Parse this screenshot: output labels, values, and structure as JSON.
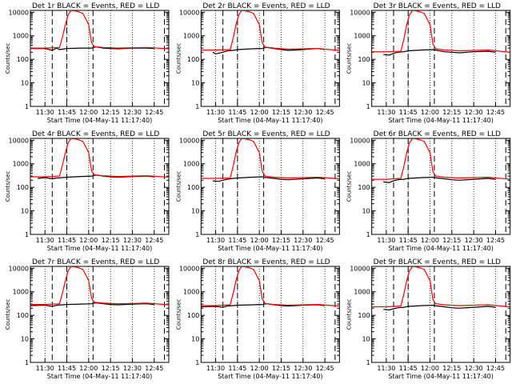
{
  "layout": {
    "rows": 3,
    "cols": 3
  },
  "colors": {
    "events": "#000000",
    "lld": "#ff0000",
    "axes": "#000000",
    "background": "#ffffff"
  },
  "chart_data": [
    {
      "type": "line",
      "title": "Det 1r BLACK = Events, RED = LLD",
      "xlabel": "Start Time (04-May-11 11:17:40)",
      "ylabel": "Counts/sec",
      "yscale": "log",
      "ylim": [
        1,
        12000
      ],
      "xlim": [
        "11:20",
        "12:55"
      ],
      "xticks": [
        "11:30",
        "11:45",
        "12:00",
        "12:15",
        "12:30",
        "12:45"
      ],
      "yticks": [
        "1",
        "10",
        "100",
        "1000",
        "10000"
      ],
      "markers": [
        "11:35",
        "11:45",
        "12:03",
        "12:52"
      ],
      "series": [
        {
          "name": "Events",
          "color": "#000000",
          "x": [
            "11:20",
            "11:30",
            "11:35",
            "11:38",
            "11:40",
            "11:45",
            "11:55",
            "12:02",
            "12:05",
            "12:10",
            "12:15",
            "12:20",
            "12:30",
            "12:40",
            "12:45"
          ],
          "values": [
            290,
            290,
            240,
            300,
            260,
            290,
            300,
            300,
            340,
            300,
            290,
            280,
            300,
            300,
            290
          ]
        },
        {
          "name": "LLD",
          "color": "#ff0000",
          "x": [
            "11:20",
            "11:30",
            "11:40",
            "11:42",
            "11:44",
            "11:46",
            "11:48",
            "11:52",
            "11:56",
            "12:00",
            "12:02",
            "12:04",
            "12:10",
            "12:20",
            "12:30",
            "12:40",
            "12:55"
          ],
          "values": [
            300,
            300,
            320,
            900,
            3000,
            8000,
            12000,
            11000,
            9000,
            3000,
            500,
            350,
            320,
            300,
            310,
            320,
            280
          ]
        }
      ]
    },
    {
      "type": "line",
      "title": "Det 2r BLACK = Events, RED = LLD",
      "xlabel": "Start Time (04-May-11 11:17:40)",
      "ylabel": "Counts/sec",
      "yscale": "log",
      "ylim": [
        1,
        12000
      ],
      "xlim": [
        "11:20",
        "12:55"
      ],
      "xticks": [
        "11:30",
        "11:45",
        "12:00",
        "12:15",
        "12:30",
        "12:45"
      ],
      "yticks": [
        "1",
        "10",
        "100",
        "1000",
        "10000"
      ],
      "markers": [
        "11:35",
        "11:45",
        "12:03",
        "12:52"
      ],
      "series": [
        {
          "name": "Events",
          "color": "#000000",
          "x": [
            "11:28",
            "11:30",
            "11:35",
            "11:38",
            "11:42",
            "11:45",
            "11:55",
            "12:02",
            "12:05",
            "12:10",
            "12:15",
            "12:20",
            "12:30",
            "12:40",
            "12:45"
          ],
          "values": [
            200,
            170,
            200,
            230,
            240,
            260,
            280,
            290,
            320,
            290,
            260,
            240,
            260,
            290,
            260
          ]
        },
        {
          "name": "LLD",
          "color": "#ff0000",
          "x": [
            "11:20",
            "11:30",
            "11:40",
            "11:42",
            "11:44",
            "11:46",
            "11:48",
            "11:52",
            "11:56",
            "12:00",
            "12:02",
            "12:04",
            "12:10",
            "12:20",
            "12:30",
            "12:40",
            "12:55"
          ],
          "values": [
            250,
            250,
            260,
            800,
            3000,
            8000,
            12000,
            11000,
            9000,
            3000,
            500,
            330,
            300,
            270,
            280,
            290,
            240
          ]
        }
      ]
    },
    {
      "type": "line",
      "title": "Det 3r BLACK = Events, RED = LLD",
      "xlabel": "Start Time (04-May-11 11:17:40)",
      "ylabel": "Counts/sec",
      "yscale": "log",
      "ylim": [
        1,
        12000
      ],
      "xlim": [
        "11:20",
        "12:55"
      ],
      "xticks": [
        "11:30",
        "11:45",
        "12:00",
        "12:15",
        "12:30",
        "12:45"
      ],
      "yticks": [
        "1",
        "10",
        "100",
        "1000",
        "10000"
      ],
      "markers": [
        "11:35",
        "11:45",
        "12:03",
        "12:52"
      ],
      "series": [
        {
          "name": "Events",
          "color": "#000000",
          "x": [
            "11:28",
            "11:32",
            "11:35",
            "11:38",
            "11:42",
            "11:45",
            "11:55",
            "12:02",
            "12:05",
            "12:10",
            "12:15",
            "12:20",
            "12:30",
            "12:40",
            "12:45"
          ],
          "values": [
            160,
            150,
            180,
            200,
            210,
            230,
            250,
            260,
            240,
            210,
            200,
            190,
            210,
            220,
            200
          ]
        },
        {
          "name": "LLD",
          "color": "#ff0000",
          "x": [
            "11:20",
            "11:30",
            "11:40",
            "11:42",
            "11:44",
            "11:46",
            "11:48",
            "11:52",
            "11:56",
            "12:00",
            "12:02",
            "12:04",
            "12:10",
            "12:20",
            "12:30",
            "12:40",
            "12:55"
          ],
          "values": [
            210,
            210,
            220,
            700,
            3000,
            8000,
            12000,
            11000,
            9000,
            3000,
            450,
            280,
            250,
            230,
            240,
            250,
            200
          ]
        }
      ]
    },
    {
      "type": "line",
      "title": "Det 4r BLACK = Events, RED = LLD",
      "xlabel": "Start Time (04-May-11 11:17:40)",
      "ylabel": "Counts/sec",
      "yscale": "log",
      "ylim": [
        1,
        12000
      ],
      "xlim": [
        "11:20",
        "12:55"
      ],
      "xticks": [
        "11:30",
        "11:45",
        "12:00",
        "12:15",
        "12:30",
        "12:45"
      ],
      "yticks": [
        "1",
        "10",
        "100",
        "1000",
        "10000"
      ],
      "markers": [
        "11:35",
        "11:45",
        "12:03",
        "12:52"
      ],
      "series": [
        {
          "name": "Events",
          "color": "#000000",
          "x": [
            "11:25",
            "11:30",
            "11:35",
            "11:38",
            "11:42",
            "11:45",
            "11:55",
            "12:02",
            "12:05",
            "12:10",
            "12:15",
            "12:20",
            "12:30",
            "12:40",
            "12:45"
          ],
          "values": [
            240,
            260,
            230,
            250,
            260,
            270,
            290,
            300,
            330,
            300,
            280,
            270,
            290,
            300,
            280
          ]
        },
        {
          "name": "LLD",
          "color": "#ff0000",
          "x": [
            "11:20",
            "11:30",
            "11:40",
            "11:42",
            "11:44",
            "11:46",
            "11:48",
            "11:52",
            "11:56",
            "12:00",
            "12:02",
            "12:04",
            "12:10",
            "12:20",
            "12:30",
            "12:40",
            "12:55"
          ],
          "values": [
            280,
            280,
            300,
            900,
            3000,
            8000,
            12000,
            11000,
            9000,
            3000,
            500,
            340,
            310,
            290,
            300,
            310,
            270
          ]
        }
      ]
    },
    {
      "type": "line",
      "title": "Det 5r BLACK = Events, RED = LLD",
      "xlabel": "Start Time (04-May-11 11:17:40)",
      "ylabel": "Counts/sec",
      "yscale": "log",
      "ylim": [
        1,
        12000
      ],
      "xlim": [
        "11:20",
        "12:55"
      ],
      "xticks": [
        "11:30",
        "11:45",
        "12:00",
        "12:15",
        "12:30",
        "12:45"
      ],
      "yticks": [
        "1",
        "10",
        "100",
        "1000",
        "10000"
      ],
      "markers": [
        "11:35",
        "11:45",
        "12:03",
        "12:52"
      ],
      "series": [
        {
          "name": "Events",
          "color": "#000000",
          "x": [
            "11:28",
            "11:32",
            "11:35",
            "11:38",
            "11:42",
            "11:45",
            "11:55",
            "12:02",
            "12:05",
            "12:10",
            "12:15",
            "12:20",
            "12:30",
            "12:40",
            "12:45"
          ],
          "values": [
            190,
            180,
            200,
            220,
            240,
            250,
            270,
            280,
            260,
            240,
            220,
            210,
            230,
            250,
            230
          ]
        },
        {
          "name": "LLD",
          "color": "#ff0000",
          "x": [
            "11:20",
            "11:30",
            "11:40",
            "11:42",
            "11:44",
            "11:46",
            "11:48",
            "11:52",
            "11:56",
            "12:00",
            "12:02",
            "12:04",
            "12:10",
            "12:20",
            "12:30",
            "12:40",
            "12:55"
          ],
          "values": [
            240,
            240,
            250,
            800,
            3000,
            8000,
            12000,
            11000,
            9000,
            3000,
            480,
            300,
            270,
            250,
            260,
            270,
            230
          ]
        }
      ]
    },
    {
      "type": "line",
      "title": "Det 6r BLACK = Events, RED = LLD",
      "xlabel": "Start Time (04-May-11 11:17:40)",
      "ylabel": "Counts/sec",
      "yscale": "log",
      "ylim": [
        1,
        12000
      ],
      "xlim": [
        "11:20",
        "12:55"
      ],
      "xticks": [
        "11:30",
        "11:45",
        "12:00",
        "12:15",
        "12:30",
        "12:45"
      ],
      "yticks": [
        "1",
        "10",
        "100",
        "1000",
        "10000"
      ],
      "markers": [
        "11:35",
        "11:45",
        "12:03",
        "12:52"
      ],
      "series": [
        {
          "name": "Events",
          "color": "#000000",
          "x": [
            "11:28",
            "11:32",
            "11:35",
            "11:38",
            "11:42",
            "11:45",
            "11:55",
            "12:02",
            "12:05",
            "12:10",
            "12:15",
            "12:20",
            "12:30",
            "12:40",
            "12:45"
          ],
          "values": [
            170,
            160,
            190,
            210,
            220,
            240,
            260,
            270,
            250,
            230,
            210,
            200,
            220,
            240,
            220
          ]
        },
        {
          "name": "LLD",
          "color": "#ff0000",
          "x": [
            "11:20",
            "11:30",
            "11:40",
            "11:42",
            "11:44",
            "11:46",
            "11:48",
            "11:52",
            "11:56",
            "12:00",
            "12:02",
            "12:04",
            "12:10",
            "12:20",
            "12:30",
            "12:40",
            "12:55"
          ],
          "values": [
            220,
            220,
            240,
            750,
            3000,
            8000,
            12000,
            11000,
            9000,
            3000,
            460,
            300,
            270,
            250,
            260,
            270,
            220
          ]
        }
      ]
    },
    {
      "type": "line",
      "title": "Det 7r BLACK = Events, RED = LLD",
      "xlabel": "Start Time (04-May-11 11:17:40)",
      "ylabel": "Counts/sec",
      "yscale": "log",
      "ylim": [
        1,
        12000
      ],
      "xlim": [
        "11:20",
        "12:55"
      ],
      "xticks": [
        "11:30",
        "11:45",
        "12:00",
        "12:15",
        "12:30",
        "12:45"
      ],
      "yticks": [
        "1",
        "10",
        "100",
        "1000",
        "10000"
      ],
      "markers": [
        "11:35",
        "11:45",
        "12:03",
        "12:52"
      ],
      "series": [
        {
          "name": "Events",
          "color": "#000000",
          "x": [
            "11:20",
            "11:30",
            "11:35",
            "11:38",
            "11:42",
            "11:45",
            "11:55",
            "12:02",
            "12:05",
            "12:10",
            "12:15",
            "12:20",
            "12:30",
            "12:40",
            "12:45"
          ],
          "values": [
            260,
            270,
            240,
            270,
            280,
            290,
            300,
            310,
            340,
            310,
            290,
            280,
            300,
            310,
            290
          ]
        },
        {
          "name": "LLD",
          "color": "#ff0000",
          "x": [
            "11:20",
            "11:30",
            "11:40",
            "11:42",
            "11:44",
            "11:46",
            "11:48",
            "11:52",
            "11:56",
            "12:00",
            "12:02",
            "12:04",
            "12:10",
            "12:20",
            "12:30",
            "12:40",
            "12:55"
          ],
          "values": [
            290,
            290,
            310,
            900,
            3000,
            8000,
            12000,
            11000,
            9000,
            3000,
            520,
            360,
            330,
            310,
            320,
            330,
            280
          ]
        }
      ]
    },
    {
      "type": "line",
      "title": "Det 8r BLACK = Events, RED = LLD",
      "xlabel": "Start Time (04-May-11 11:17:40)",
      "ylabel": "Counts/sec",
      "yscale": "log",
      "ylim": [
        1,
        12000
      ],
      "xlim": [
        "11:20",
        "12:55"
      ],
      "xticks": [
        "11:30",
        "11:45",
        "12:00",
        "12:15",
        "12:30",
        "12:45"
      ],
      "yticks": [
        "1",
        "10",
        "100",
        "1000",
        "10000"
      ],
      "markers": [
        "11:35",
        "11:45",
        "12:03",
        "12:52"
      ],
      "series": [
        {
          "name": "Events",
          "color": "#000000",
          "x": [
            "11:20",
            "11:30",
            "11:35",
            "11:38",
            "11:42",
            "11:45",
            "11:55",
            "12:02",
            "12:05",
            "12:10",
            "12:15",
            "12:20",
            "12:30",
            "12:40",
            "12:45"
          ],
          "values": [
            230,
            240,
            220,
            250,
            260,
            270,
            280,
            290,
            310,
            280,
            260,
            250,
            270,
            280,
            260
          ]
        },
        {
          "name": "LLD",
          "color": "#ff0000",
          "x": [
            "11:20",
            "11:30",
            "11:40",
            "11:42",
            "11:44",
            "11:46",
            "11:48",
            "11:52",
            "11:56",
            "12:00",
            "12:02",
            "12:04",
            "12:10",
            "12:20",
            "12:30",
            "12:40",
            "12:55"
          ],
          "values": [
            260,
            260,
            280,
            850,
            3000,
            8000,
            12000,
            11000,
            9000,
            3000,
            500,
            320,
            290,
            270,
            280,
            290,
            250
          ]
        }
      ]
    },
    {
      "type": "line",
      "title": "Det 9r BLACK = Events, RED = LLD",
      "xlabel": "Start Time (04-May-11 11:17:40)",
      "ylabel": "Counts/sec",
      "yscale": "log",
      "ylim": [
        1,
        12000
      ],
      "xlim": [
        "11:20",
        "12:55"
      ],
      "xticks": [
        "11:30",
        "11:45",
        "12:00",
        "12:15",
        "12:30",
        "12:45"
      ],
      "yticks": [
        "1",
        "10",
        "100",
        "1000",
        "10000"
      ],
      "markers": [
        "11:35",
        "11:45",
        "12:03",
        "12:52"
      ],
      "series": [
        {
          "name": "Events",
          "color": "#000000",
          "x": [
            "11:28",
            "11:32",
            "11:35",
            "11:38",
            "11:42",
            "11:45",
            "11:55",
            "12:02",
            "12:05",
            "12:10",
            "12:15",
            "12:20",
            "12:30",
            "12:40",
            "12:45"
          ],
          "values": [
            180,
            170,
            190,
            210,
            220,
            240,
            260,
            270,
            250,
            230,
            210,
            200,
            220,
            240,
            220
          ]
        },
        {
          "name": "LLD",
          "color": "#ff0000",
          "x": [
            "11:20",
            "11:30",
            "11:40",
            "11:42",
            "11:44",
            "11:46",
            "11:48",
            "11:52",
            "11:56",
            "12:00",
            "12:02",
            "12:04",
            "12:10",
            "12:20",
            "12:30",
            "12:40",
            "12:55"
          ],
          "values": [
            230,
            230,
            250,
            800,
            3000,
            8000,
            12000,
            11000,
            9000,
            3000,
            470,
            310,
            280,
            260,
            270,
            280,
            230
          ]
        }
      ]
    }
  ]
}
